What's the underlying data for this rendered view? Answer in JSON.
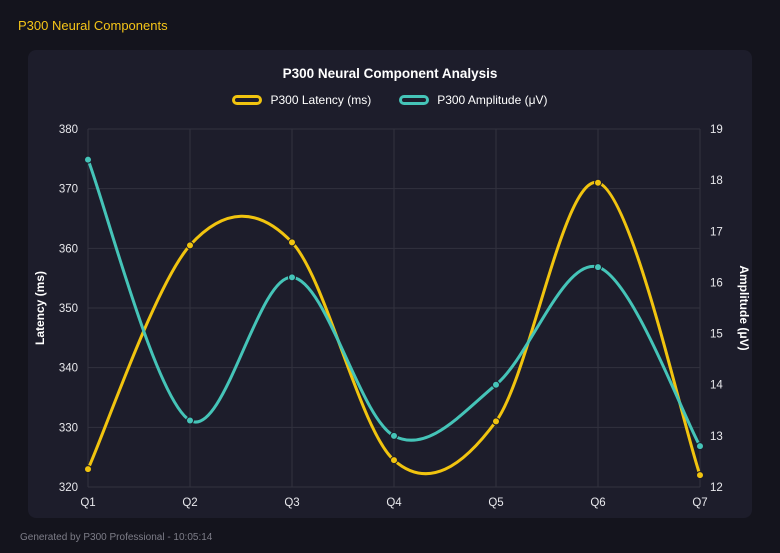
{
  "header": {
    "title": "P300 Neural Components"
  },
  "footer": {
    "text": "Generated by P300 Professional - 10:05:14"
  },
  "colors": {
    "background": "#14141d",
    "panel": "#1d1d2b",
    "grid": "#32323f",
    "tick_text": "#e8e8ec",
    "title_text": "#ffffff",
    "accent_yellow": "#f1c40f",
    "accent_teal": "#45c4b8"
  },
  "chart_data": {
    "type": "line",
    "title": "P300 Neural Component Analysis",
    "categories": [
      "Q1",
      "Q2",
      "Q3",
      "Q4",
      "Q5",
      "Q6",
      "Q7"
    ],
    "series": [
      {
        "name": "P300 Latency (ms)",
        "axis": "left",
        "color": "#f1c40f",
        "values": [
          323,
          360.5,
          361,
          324.5,
          331,
          371,
          322
        ]
      },
      {
        "name": "P300 Amplitude (μV)",
        "axis": "right",
        "color": "#45c4b8",
        "values": [
          18.4,
          13.3,
          16.1,
          13.0,
          14.0,
          16.3,
          12.8
        ]
      }
    ],
    "left_axis": {
      "label": "Latency (ms)",
      "min": 320,
      "max": 380,
      "step": 10
    },
    "right_axis": {
      "label": "Amplitude (μV)",
      "min": 12,
      "max": 19,
      "step": 1
    },
    "grid": true,
    "legend_position": "top",
    "curve": "smooth"
  }
}
